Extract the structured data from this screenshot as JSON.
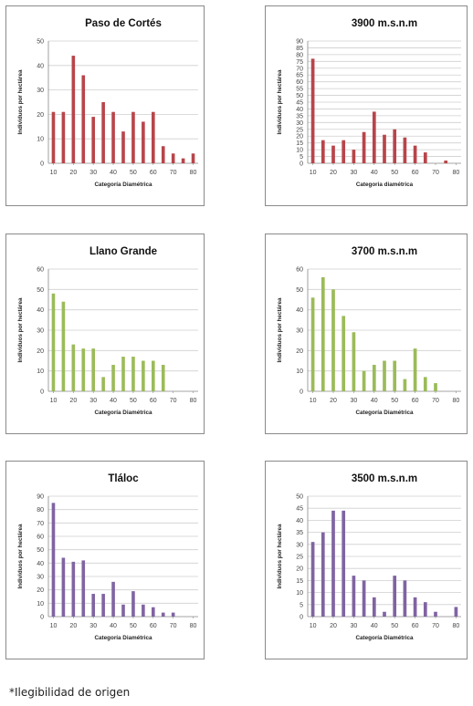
{
  "xlabel_default": "Categoría Diamétrica",
  "ylabel_default": "Individuos por hectárea",
  "note": "*Ilegibilidad de origen",
  "chart_data": [
    {
      "type": "bar",
      "title": "Paso de Cortés",
      "xlabel": "Categoría Diamétrica",
      "ylabel": "Individuos por hectárea",
      "color": "#b8454a",
      "xticks": [
        10,
        20,
        30,
        40,
        50,
        60,
        70,
        80
      ],
      "xlim": [
        7.5,
        82.5
      ],
      "yticks": [
        0,
        10,
        20,
        30,
        40,
        50
      ],
      "ylim": [
        0,
        50
      ],
      "x": [
        10,
        15,
        20,
        25,
        30,
        35,
        40,
        45,
        50,
        55,
        60,
        65,
        70,
        75,
        80
      ],
      "values": [
        21,
        21,
        44,
        36,
        19,
        25,
        21,
        13,
        21,
        17,
        21,
        7,
        4,
        2,
        4
      ]
    },
    {
      "type": "bar",
      "title": "3900 m.s.n.m",
      "xlabel": "Categoria diamétrica",
      "ylabel": "Individuos por hectárea",
      "color": "#b8454a",
      "xticks": [
        10,
        20,
        30,
        40,
        50,
        60,
        70,
        80
      ],
      "xlim": [
        7.5,
        82.5
      ],
      "yticks": [
        0,
        5,
        10,
        15,
        20,
        25,
        30,
        35,
        40,
        45,
        50,
        55,
        60,
        65,
        70,
        75,
        80,
        85,
        90
      ],
      "ylim": [
        0,
        90
      ],
      "x": [
        10,
        15,
        20,
        25,
        30,
        35,
        40,
        45,
        50,
        55,
        60,
        65,
        70,
        75,
        80
      ],
      "values": [
        77,
        17,
        13,
        17,
        10,
        23,
        38,
        21,
        25,
        19,
        13,
        8,
        0,
        2,
        0
      ]
    },
    {
      "type": "bar",
      "title": "Llano Grande",
      "xlabel": "Categoría Diamétrica",
      "ylabel": "Individuos por hectárea",
      "color": "#9bbb59",
      "xticks": [
        10,
        20,
        30,
        40,
        50,
        60,
        70,
        80
      ],
      "xlim": [
        7.5,
        82.5
      ],
      "yticks": [
        0,
        10,
        20,
        30,
        40,
        50,
        60
      ],
      "ylim": [
        0,
        60
      ],
      "x": [
        10,
        15,
        20,
        25,
        30,
        35,
        40,
        45,
        50,
        55,
        60,
        65,
        70,
        75,
        80
      ],
      "values": [
        48,
        44,
        23,
        21,
        21,
        7,
        13,
        17,
        17,
        15,
        15,
        13,
        0,
        0,
        0
      ]
    },
    {
      "type": "bar",
      "title": "3700 m.s.n.m",
      "xlabel": "Categoría Diamétrica",
      "ylabel": "Individuos por hectárea",
      "color": "#9bbb59",
      "xticks": [
        10,
        20,
        30,
        40,
        50,
        60,
        70,
        80
      ],
      "xlim": [
        7.5,
        82.5
      ],
      "yticks": [
        0,
        10,
        20,
        30,
        40,
        50,
        60
      ],
      "ylim": [
        0,
        60
      ],
      "x": [
        10,
        15,
        20,
        25,
        30,
        35,
        40,
        45,
        50,
        55,
        60,
        65,
        70,
        75,
        80
      ],
      "values": [
        46,
        56,
        50,
        37,
        29,
        10,
        13,
        15,
        15,
        6,
        21,
        7,
        4,
        0,
        0
      ]
    },
    {
      "type": "bar",
      "title": "Tláloc",
      "xlabel": "Categoría Diamétrica",
      "ylabel": "Individuos por hectárea",
      "color": "#8064a2",
      "xticks": [
        10,
        20,
        30,
        40,
        50,
        60,
        70,
        80
      ],
      "xlim": [
        7.5,
        82.5
      ],
      "yticks": [
        0,
        10,
        20,
        30,
        40,
        50,
        60,
        70,
        80,
        90
      ],
      "ylim": [
        0,
        90
      ],
      "x": [
        10,
        15,
        20,
        25,
        30,
        35,
        40,
        45,
        50,
        55,
        60,
        65,
        70,
        75,
        80
      ],
      "values": [
        85,
        44,
        41,
        42,
        17,
        17,
        26,
        9,
        19,
        9,
        7,
        3,
        3,
        0,
        0
      ]
    },
    {
      "type": "bar",
      "title": "3500 m.s.n.m",
      "xlabel": "Categoría Diamétrica",
      "ylabel": "Individuos por hectárea",
      "color": "#8064a2",
      "xticks": [
        10,
        20,
        30,
        40,
        50,
        60,
        70,
        80
      ],
      "xlim": [
        7.5,
        82.5
      ],
      "yticks": [
        0,
        5,
        10,
        15,
        20,
        25,
        30,
        35,
        40,
        45,
        50
      ],
      "ylim": [
        0,
        50
      ],
      "x": [
        10,
        15,
        20,
        25,
        30,
        35,
        40,
        45,
        50,
        55,
        60,
        65,
        70,
        75,
        80
      ],
      "values": [
        31,
        35,
        44,
        44,
        17,
        15,
        8,
        2,
        17,
        15,
        8,
        6,
        2,
        0,
        4
      ]
    }
  ]
}
